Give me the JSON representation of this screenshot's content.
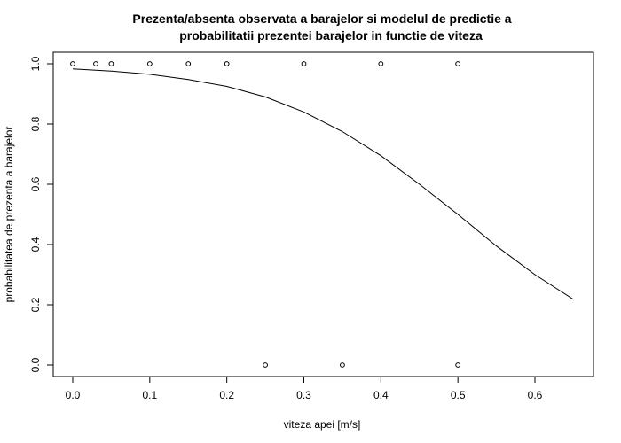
{
  "chart_data": {
    "type": "scatter",
    "title_line1": "Prezenta/absenta observata a barajelor si modelul de predictie a",
    "title_line2": "probabilitatii prezentei barajelor in functie de viteza",
    "xlabel": "viteza apei [m/s]",
    "ylabel": "probabilitatea de prezenta a barajelor",
    "xlim": [
      0.0,
      0.65
    ],
    "ylim": [
      0.0,
      1.0
    ],
    "x_ticks": [
      "0.0",
      "0.1",
      "0.2",
      "0.3",
      "0.4",
      "0.5",
      "0.6"
    ],
    "y_ticks": [
      "0.0",
      "0.2",
      "0.4",
      "0.6",
      "0.8",
      "1.0"
    ],
    "grid": false,
    "observed_points": [
      {
        "x": 0.0,
        "y": 1
      },
      {
        "x": 0.03,
        "y": 1
      },
      {
        "x": 0.05,
        "y": 1
      },
      {
        "x": 0.1,
        "y": 1
      },
      {
        "x": 0.15,
        "y": 1
      },
      {
        "x": 0.2,
        "y": 1
      },
      {
        "x": 0.3,
        "y": 1
      },
      {
        "x": 0.4,
        "y": 1
      },
      {
        "x": 0.5,
        "y": 1
      },
      {
        "x": 0.25,
        "y": 0
      },
      {
        "x": 0.35,
        "y": 0
      },
      {
        "x": 0.5,
        "y": 0
      }
    ],
    "fitted_curve": {
      "x": [
        0.0,
        0.05,
        0.1,
        0.15,
        0.2,
        0.25,
        0.3,
        0.35,
        0.4,
        0.45,
        0.5,
        0.55,
        0.6,
        0.65
      ],
      "y": [
        0.983,
        0.976,
        0.965,
        0.948,
        0.925,
        0.89,
        0.84,
        0.775,
        0.695,
        0.6,
        0.5,
        0.395,
        0.3,
        0.218
      ]
    }
  }
}
